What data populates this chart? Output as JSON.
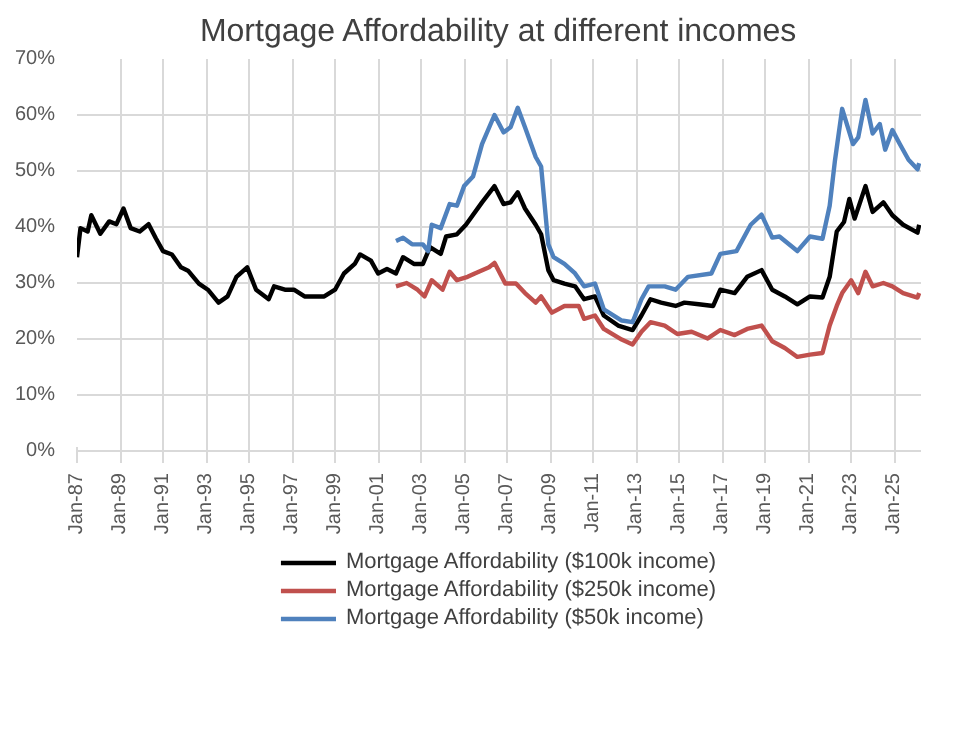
{
  "chart_data": {
    "type": "line",
    "title": "Mortgage Affordability at different incomes",
    "xlim": [
      "1987-01",
      "2026-04"
    ],
    "xticks": [
      {
        "value": "1987-01",
        "label": "Jan-87"
      },
      {
        "value": "1989-01",
        "label": "Jan-89"
      },
      {
        "value": "1991-01",
        "label": "Jan-91"
      },
      {
        "value": "1993-01",
        "label": "Jan-93"
      },
      {
        "value": "1995-01",
        "label": "Jan-95"
      },
      {
        "value": "1997-01",
        "label": "Jan-97"
      },
      {
        "value": "1999-01",
        "label": "Jan-99"
      },
      {
        "value": "2001-01",
        "label": "Jan-01"
      },
      {
        "value": "2003-01",
        "label": "Jan-03"
      },
      {
        "value": "2005-01",
        "label": "Jan-05"
      },
      {
        "value": "2007-01",
        "label": "Jan-07"
      },
      {
        "value": "2009-01",
        "label": "Jan-09"
      },
      {
        "value": "2011-01",
        "label": "Jan-11"
      },
      {
        "value": "2013-01",
        "label": "Jan-13"
      },
      {
        "value": "2015-01",
        "label": "Jan-15"
      },
      {
        "value": "2017-01",
        "label": "Jan-17"
      },
      {
        "value": "2019-01",
        "label": "Jan-19"
      },
      {
        "value": "2021-01",
        "label": "Jan-21"
      },
      {
        "value": "2023-01",
        "label": "Jan-23"
      },
      {
        "value": "2025-01",
        "label": "Jan-25"
      }
    ],
    "ylim": [
      0,
      70
    ],
    "yticks": [
      {
        "value": 0,
        "label": "0%"
      },
      {
        "value": 10,
        "label": "10%"
      },
      {
        "value": 20,
        "label": "20%"
      },
      {
        "value": 30,
        "label": "30%"
      },
      {
        "value": 40,
        "label": "40%"
      },
      {
        "value": 50,
        "label": "50%"
      },
      {
        "value": 60,
        "label": "60%"
      },
      {
        "value": 70,
        "label": "70%"
      }
    ],
    "grid": true,
    "legend": "bottom",
    "marker": "none",
    "line_style": "solid",
    "series": [
      {
        "name": "Mortgage Affordability ($100k income)",
        "color": "#000000",
        "x": [
          "1987-01",
          "1987-03",
          "1987-07",
          "1987-09",
          "1988-02",
          "1988-07",
          "1988-11",
          "1989-03",
          "1989-07",
          "1989-12",
          "1990-05",
          "1990-09",
          "1991-01",
          "1991-06",
          "1991-11",
          "1992-03",
          "1992-09",
          "1993-02",
          "1993-08",
          "1994-01",
          "1994-06",
          "1994-12",
          "1995-05",
          "1995-12",
          "1996-03",
          "1996-09",
          "1997-02",
          "1997-08",
          "1998-01",
          "1998-07",
          "1999-01",
          "1999-06",
          "1999-12",
          "2000-03",
          "2000-09",
          "2001-01",
          "2001-06",
          "2001-11",
          "2002-03",
          "2002-09",
          "2003-02",
          "2003-06",
          "2003-12",
          "2004-03",
          "2004-09",
          "2005-02",
          "2005-11",
          "2006-06",
          "2006-11",
          "2007-03",
          "2007-07",
          "2007-11",
          "2008-05",
          "2008-08",
          "2008-12",
          "2009-03",
          "2009-09",
          "2010-03",
          "2010-08",
          "2011-02",
          "2011-07",
          "2012-03",
          "2012-11",
          "2013-04",
          "2013-09",
          "2014-03",
          "2014-11",
          "2015-04",
          "2015-12",
          "2016-08",
          "2016-12",
          "2017-08",
          "2018-03",
          "2018-11",
          "2019-05",
          "2019-12",
          "2020-07",
          "2021-02",
          "2021-09",
          "2022-01",
          "2022-05",
          "2022-09",
          "2022-12",
          "2023-03",
          "2023-09",
          "2024-01",
          "2024-07",
          "2024-12",
          "2025-06",
          "2026-02",
          "2026-03"
        ],
        "values": [
          34.6,
          39.8,
          39.2,
          42.1,
          38.8,
          41,
          40.5,
          43.3,
          39.8,
          39.2,
          40.5,
          38,
          35.7,
          35.1,
          32.8,
          32.2,
          29.9,
          28.8,
          26.5,
          27.6,
          31.1,
          32.8,
          28.8,
          27.1,
          29.4,
          28.8,
          28.8,
          27.6,
          27.6,
          27.6,
          28.8,
          31.7,
          33.4,
          35.1,
          34.0,
          31.7,
          32.5,
          31.7,
          34.6,
          33.4,
          33.4,
          36.4,
          35.2,
          38.3,
          38.7,
          40.4,
          44.4,
          47.3,
          44.1,
          44.4,
          46.2,
          43.3,
          40.4,
          38.7,
          32.3,
          30.5,
          29.9,
          29.4,
          27.1,
          27.6,
          24.2,
          22.4,
          21.6,
          24.2,
          27.1,
          26.5,
          25.9,
          26.5,
          26.2,
          25.9,
          28.8,
          28.2,
          31.1,
          32.3,
          28.8,
          27.6,
          26.2,
          27.6,
          27.4,
          31.1,
          39.2,
          40.9,
          45,
          41.5,
          47.3,
          42.7,
          44.4,
          42.1,
          40.4,
          39.0,
          40.4
        ]
      },
      {
        "name": "Mortgage Affordability ($250k income)",
        "color": "#c0504d",
        "x": [
          "2001-11",
          "2002-05",
          "2002-11",
          "2003-03",
          "2003-07",
          "2004-01",
          "2004-05",
          "2004-09",
          "2005-03",
          "2005-07",
          "2006-03",
          "2006-06",
          "2006-12",
          "2007-06",
          "2007-11",
          "2008-05",
          "2008-08",
          "2009-02",
          "2009-09",
          "2010-05",
          "2010-08",
          "2011-02",
          "2011-07",
          "2012-05",
          "2012-11",
          "2013-04",
          "2013-09",
          "2014-05",
          "2014-12",
          "2015-08",
          "2016-05",
          "2016-12",
          "2017-08",
          "2018-03",
          "2018-11",
          "2019-05",
          "2019-12",
          "2020-07",
          "2021-02",
          "2021-09",
          "2022-01",
          "2022-05",
          "2022-08",
          "2023-01",
          "2023-05",
          "2023-09",
          "2024-01",
          "2024-07",
          "2024-12",
          "2025-06",
          "2026-02",
          "2026-03"
        ],
        "values": [
          29.4,
          30.0,
          28.8,
          27.6,
          30.5,
          28.8,
          32,
          30.5,
          31.1,
          31.7,
          32.8,
          33.6,
          29.9,
          29.9,
          28.2,
          26.5,
          27.6,
          24.7,
          25.9,
          25.9,
          23.6,
          24.2,
          21.8,
          19.9,
          19.0,
          21.3,
          23.0,
          22.4,
          20.9,
          21.3,
          20.1,
          21.6,
          20.7,
          21.8,
          22.4,
          19.6,
          18.4,
          16.8,
          17.2,
          17.5,
          22.4,
          25.9,
          28.2,
          30.5,
          28.2,
          32.0,
          29.4,
          30.0,
          29.4,
          28.2,
          27.4,
          28.2
        ]
      },
      {
        "name": "Mortgage Affordability ($50k income)",
        "color": "#4f81bd",
        "x": [
          "2001-11",
          "2002-03",
          "2002-08",
          "2003-02",
          "2003-05",
          "2003-07",
          "2003-12",
          "2004-05",
          "2004-09",
          "2005-01",
          "2005-06",
          "2005-11",
          "2006-06",
          "2006-11",
          "2007-03",
          "2007-07",
          "2007-11",
          "2008-05",
          "2008-08",
          "2008-12",
          "2009-03",
          "2009-09",
          "2010-03",
          "2010-08",
          "2011-02",
          "2011-07",
          "2012-05",
          "2012-11",
          "2013-04",
          "2013-08",
          "2014-05",
          "2014-11",
          "2015-06",
          "2016-07",
          "2016-12",
          "2017-09",
          "2018-05",
          "2018-11",
          "2019-05",
          "2019-09",
          "2020-07",
          "2021-02",
          "2021-09",
          "2022-01",
          "2022-04",
          "2022-08",
          "2023-02",
          "2023-05",
          "2023-09",
          "2024-01",
          "2024-05",
          "2024-08",
          "2024-12",
          "2025-04",
          "2025-09",
          "2026-02",
          "2026-03"
        ],
        "values": [
          37.5,
          38.1,
          36.9,
          36.9,
          35.7,
          40.4,
          39.8,
          44.1,
          43.8,
          47.3,
          49,
          54.8,
          60.0,
          56.9,
          57.8,
          61.3,
          57.8,
          52.5,
          50.8,
          36.9,
          34.6,
          33.4,
          31.7,
          29.4,
          29.9,
          25.3,
          23.3,
          23.0,
          27.1,
          29.4,
          29.4,
          28.8,
          31.1,
          31.7,
          35.2,
          35.7,
          40.4,
          42.2,
          38.1,
          38.3,
          35.7,
          38.3,
          37.9,
          43.8,
          51.9,
          61.1,
          54.8,
          56.0,
          62.7,
          56.7,
          58.4,
          53.8,
          57.3,
          54.9,
          52.0,
          50.3,
          51.4
        ]
      }
    ]
  }
}
